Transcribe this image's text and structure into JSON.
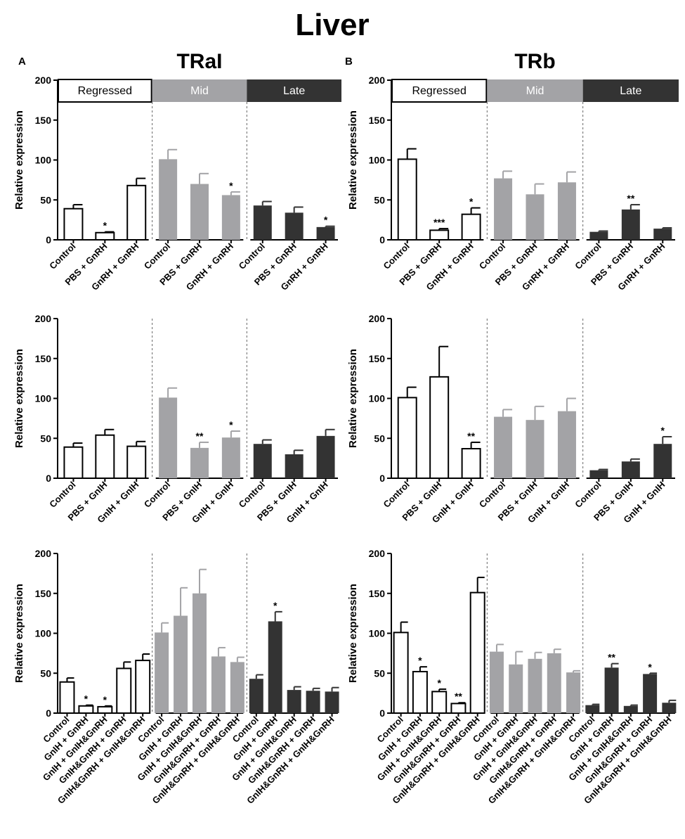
{
  "figure": {
    "title": "Liver"
  },
  "colors": {
    "regressed": "#ffffff",
    "mid": "#a3a3a6",
    "late": "#333333",
    "stroke": "#000000"
  },
  "chart_data": [
    {
      "id": "A1",
      "type": "bar",
      "panel_label": "A",
      "gene": "TRaI",
      "phases": [
        "Regressed",
        "Mid",
        "Late"
      ],
      "ylabel": "Relative expression",
      "ylim": [
        0,
        200
      ],
      "yticks": [
        0,
        50,
        100,
        150,
        200
      ],
      "categories": [
        "Control",
        "PBS + GnRH",
        "GnRH + GnRH"
      ],
      "groups": [
        {
          "values": [
            39,
            9,
            68
          ],
          "errors": [
            5,
            1,
            9
          ],
          "sig": [
            "",
            "*",
            ""
          ]
        },
        {
          "values": [
            101,
            70,
            56
          ],
          "errors": [
            12,
            13,
            4
          ],
          "sig": [
            "",
            "",
            "*"
          ]
        },
        {
          "values": [
            43,
            34,
            16
          ],
          "errors": [
            5,
            7,
            1
          ],
          "sig": [
            "",
            "",
            "*"
          ]
        }
      ]
    },
    {
      "id": "B1",
      "type": "bar",
      "panel_label": "B",
      "gene": "TRb",
      "phases": [
        "Regressed",
        "Mid",
        "Late"
      ],
      "ylabel": "Relative expression",
      "ylim": [
        0,
        200
      ],
      "yticks": [
        0,
        50,
        100,
        150,
        200
      ],
      "categories": [
        "Control",
        "PBS + GnRH",
        "GnRH + GnRH"
      ],
      "groups": [
        {
          "values": [
            101,
            12,
            32
          ],
          "errors": [
            13,
            2,
            8
          ],
          "sig": [
            "",
            "***",
            "*"
          ]
        },
        {
          "values": [
            77,
            57,
            72
          ],
          "errors": [
            9,
            13,
            13
          ],
          "sig": [
            "",
            "",
            ""
          ]
        },
        {
          "values": [
            10,
            38,
            14
          ],
          "errors": [
            1,
            6,
            1
          ],
          "sig": [
            "",
            "**",
            ""
          ]
        }
      ]
    },
    {
      "id": "A2",
      "type": "bar",
      "ylabel": "Relative expression",
      "ylim": [
        0,
        200
      ],
      "yticks": [
        0,
        50,
        100,
        150,
        200
      ],
      "categories": [
        "Control",
        "PBS + GnIH",
        "GnIH + GnIH"
      ],
      "groups": [
        {
          "values": [
            39,
            54,
            40
          ],
          "errors": [
            5,
            7,
            6
          ],
          "sig": [
            "",
            "",
            ""
          ]
        },
        {
          "values": [
            101,
            38,
            51
          ],
          "errors": [
            12,
            7,
            8
          ],
          "sig": [
            "",
            "**",
            "*"
          ]
        },
        {
          "values": [
            43,
            30,
            53
          ],
          "errors": [
            5,
            5,
            8
          ],
          "sig": [
            "",
            "",
            ""
          ]
        }
      ]
    },
    {
      "id": "B2",
      "type": "bar",
      "ylabel": "Relative expression",
      "ylim": [
        0,
        200
      ],
      "yticks": [
        0,
        50,
        100,
        150,
        200
      ],
      "categories": [
        "Control",
        "PBS + GnIH",
        "GnIH + GnIH"
      ],
      "groups": [
        {
          "values": [
            101,
            127,
            37
          ],
          "errors": [
            13,
            38,
            8
          ],
          "sig": [
            "",
            "",
            "**"
          ]
        },
        {
          "values": [
            77,
            73,
            84
          ],
          "errors": [
            9,
            17,
            16
          ],
          "sig": [
            "",
            "",
            ""
          ]
        },
        {
          "values": [
            10,
            21,
            43
          ],
          "errors": [
            1,
            3,
            9
          ],
          "sig": [
            "",
            "",
            "*"
          ]
        }
      ]
    },
    {
      "id": "A3",
      "type": "bar",
      "ylabel": "Relative expression",
      "ylim": [
        0,
        200
      ],
      "yticks": [
        0,
        50,
        100,
        150,
        200
      ],
      "categories": [
        "Control",
        "GnIH + GnRH",
        "GnIH + GnIH&GnRH",
        "GnIH&GnRH + GnRH",
        "GnIH&GnRH + GnIH&GnRH"
      ],
      "groups": [
        {
          "values": [
            39,
            9,
            8,
            56,
            66
          ],
          "errors": [
            5,
            1,
            1,
            8,
            8
          ],
          "sig": [
            "",
            "*",
            "*",
            "",
            ""
          ]
        },
        {
          "values": [
            101,
            122,
            150,
            71,
            64
          ],
          "errors": [
            12,
            35,
            30,
            11,
            6
          ],
          "sig": [
            "",
            "",
            "",
            "",
            ""
          ]
        },
        {
          "values": [
            43,
            115,
            29,
            28,
            27
          ],
          "errors": [
            5,
            12,
            4,
            3,
            5
          ],
          "sig": [
            "",
            "*",
            "",
            "",
            ""
          ]
        }
      ]
    },
    {
      "id": "B3",
      "type": "bar",
      "ylabel": "Relative expression",
      "ylim": [
        0,
        200
      ],
      "yticks": [
        0,
        50,
        100,
        150,
        200
      ],
      "categories": [
        "Control",
        "GnIH + GnRH",
        "GnIH + GnIH&GnRH",
        "GnIH&GnRH + GnRH",
        "GnIH&GnRH + GnIH&GnRH"
      ],
      "groups": [
        {
          "values": [
            101,
            52,
            27,
            12,
            151
          ],
          "errors": [
            13,
            6,
            3,
            1,
            19
          ],
          "sig": [
            "",
            "*",
            "*",
            "**",
            ""
          ]
        },
        {
          "values": [
            77,
            61,
            68,
            75,
            51
          ],
          "errors": [
            9,
            16,
            8,
            5,
            2
          ],
          "sig": [
            "",
            "",
            "",
            "",
            ""
          ]
        },
        {
          "values": [
            10,
            57,
            9,
            49,
            13
          ],
          "errors": [
            1,
            5,
            1,
            1,
            3
          ],
          "sig": [
            "",
            "**",
            "",
            "*",
            ""
          ]
        }
      ]
    }
  ]
}
